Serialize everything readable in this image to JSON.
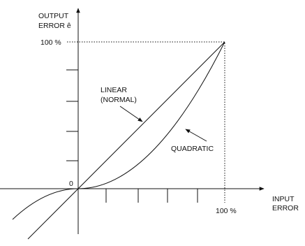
{
  "y_axis": {
    "label_lines": [
      "OUTPUT",
      "ERROR ê"
    ],
    "top_label": "100 %",
    "origin_label": "0"
  },
  "x_axis": {
    "label_lines": [
      "INPUT",
      "ERROR"
    ],
    "end_label": "100 %"
  },
  "curves": [
    {
      "label_lines": [
        "LINEAR",
        "(NORMAL)"
      ]
    },
    {
      "label_lines": [
        "QUADRATIC"
      ]
    }
  ]
}
